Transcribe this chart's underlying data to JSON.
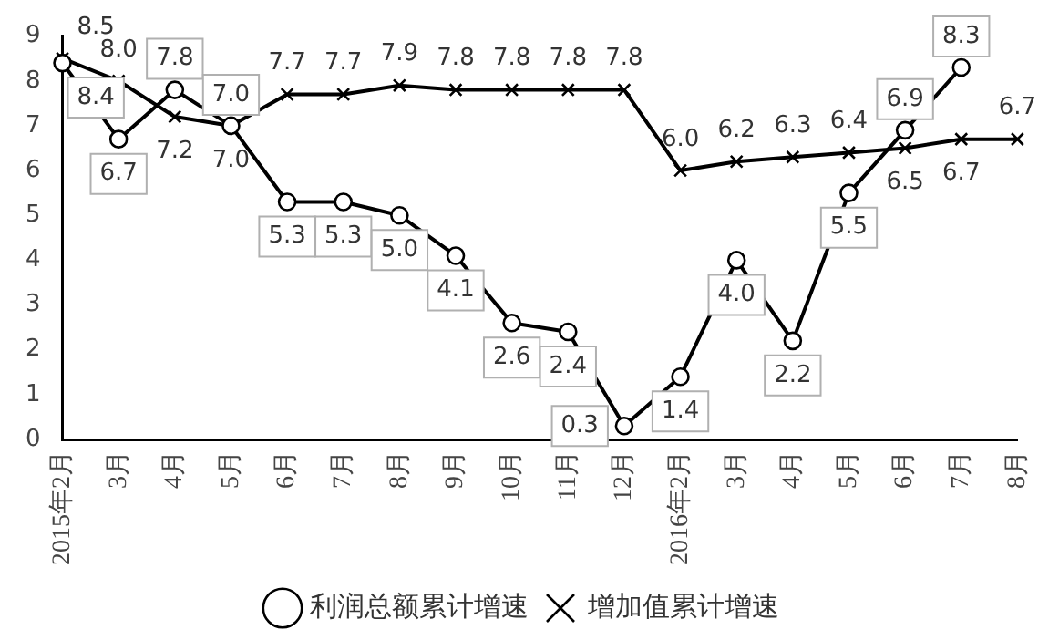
{
  "chart_data": {
    "type": "line",
    "categories": [
      "2015年2月",
      "3月",
      "4月",
      "5月",
      "6月",
      "7月",
      "8月",
      "9月",
      "10月",
      "11月",
      "12月",
      "2016年2月",
      "3月",
      "4月",
      "5月",
      "6月",
      "7月",
      "8月"
    ],
    "series": [
      {
        "name": "利润总额累计增速",
        "color": "#000000",
        "marker": "circle",
        "values": [
          8.4,
          6.7,
          7.8,
          7.0,
          5.3,
          5.3,
          5.0,
          4.1,
          2.6,
          2.4,
          0.3,
          1.4,
          4.0,
          2.2,
          5.5,
          6.9,
          8.3,
          null
        ],
        "value_labels": [
          "8.4",
          "6.7",
          "7.8",
          "7.0",
          "5.3",
          "5.3",
          "5.0",
          "4.1",
          "2.6",
          "2.4",
          "0.3",
          "1.4",
          "4.0",
          "2.2",
          "5.5",
          "6.9",
          "8.3",
          null
        ]
      },
      {
        "name": "增加值累计增速",
        "color": "#000000",
        "marker": "cross",
        "values": [
          8.5,
          8.0,
          7.2,
          7.0,
          7.7,
          7.7,
          7.9,
          7.8,
          7.8,
          7.8,
          7.8,
          6.0,
          6.2,
          6.3,
          6.4,
          6.5,
          6.7,
          6.7
        ],
        "value_labels": [
          "8.5",
          "8.0",
          "7.2",
          "7.0",
          "7.7",
          "7.7",
          "7.9",
          "7.8",
          "7.8",
          "7.8",
          "7.8",
          "6.0",
          "6.2",
          "6.3",
          "6.4",
          "6.5",
          "6.7",
          "6.7"
        ]
      }
    ],
    "ylim": [
      0,
      9
    ],
    "yticks": [
      0,
      1,
      2,
      3,
      4,
      5,
      6,
      7,
      8,
      9
    ],
    "grid": false,
    "legend": "bottom"
  }
}
